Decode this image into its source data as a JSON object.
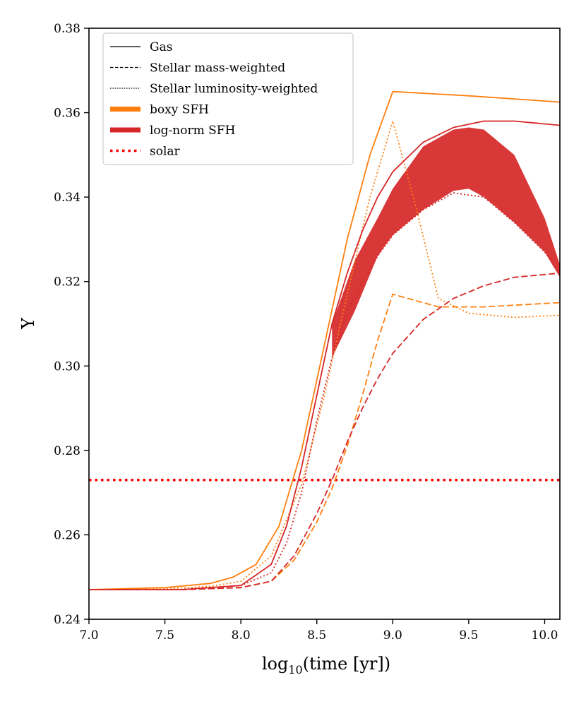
{
  "chart_data": {
    "type": "line",
    "xlabel": "log",
    "xlabel_sub": "10",
    "xlabel_rest": "(time [yr])",
    "ylabel": "Y",
    "xlim": [
      7.0,
      10.1
    ],
    "ylim": [
      0.24,
      0.38
    ],
    "xticks": [
      7.0,
      7.5,
      8.0,
      8.5,
      9.0,
      9.5,
      10.0
    ],
    "xtick_labels": [
      "7.0",
      "7.5",
      "8.0",
      "8.5",
      "9.0",
      "9.5",
      "10.0"
    ],
    "yticks": [
      0.24,
      0.26,
      0.28,
      0.3,
      0.32,
      0.34,
      0.36,
      0.38
    ],
    "ytick_labels": [
      "0.24",
      "0.26",
      "0.28",
      "0.30",
      "0.32",
      "0.34",
      "0.36",
      "0.38"
    ],
    "grid": false,
    "legend_position": "top-left",
    "colors": {
      "boxy": "#ff7f0e",
      "lognorm": "#d62728",
      "solar": "#ff0000"
    },
    "legend": [
      {
        "label": "Gas",
        "style": "solid",
        "color": "#000000"
      },
      {
        "label": "Stellar mass-weighted",
        "style": "dashed",
        "color": "#000000"
      },
      {
        "label": "Stellar luminosity-weighted",
        "style": "dotted",
        "color": "#000000"
      },
      {
        "label": "boxy SFH",
        "style": "thick",
        "color": "#ff7f0e"
      },
      {
        "label": "log-norm SFH",
        "style": "thick",
        "color": "#d62728"
      },
      {
        "label": "solar",
        "style": "dotted-thick",
        "color": "#ff0000"
      }
    ],
    "solar_y": 0.273,
    "series": [
      {
        "sfh": "boxy",
        "kind": "gas",
        "x": [
          7.0,
          7.5,
          7.8,
          7.95,
          8.1,
          8.25,
          8.4,
          8.55,
          8.7,
          8.85,
          9.0,
          9.5,
          10.1
        ],
        "y": [
          0.247,
          0.2475,
          0.2485,
          0.25,
          0.253,
          0.262,
          0.28,
          0.305,
          0.33,
          0.35,
          0.365,
          0.364,
          0.3625
        ]
      },
      {
        "sfh": "boxy",
        "kind": "mass",
        "x": [
          7.0,
          7.6,
          8.0,
          8.2,
          8.35,
          8.5,
          8.6,
          8.7,
          8.8,
          8.9,
          9.0,
          9.3,
          9.6,
          10.1
        ],
        "y": [
          0.247,
          0.247,
          0.2475,
          0.249,
          0.254,
          0.263,
          0.271,
          0.281,
          0.293,
          0.306,
          0.317,
          0.314,
          0.314,
          0.315
        ]
      },
      {
        "sfh": "boxy",
        "kind": "lum",
        "x": [
          7.0,
          7.5,
          7.8,
          8.0,
          8.2,
          8.4,
          8.55,
          8.7,
          8.85,
          9.0,
          9.15,
          9.3,
          9.5,
          9.8,
          10.1
        ],
        "y": [
          0.247,
          0.2472,
          0.2478,
          0.249,
          0.255,
          0.272,
          0.293,
          0.317,
          0.34,
          0.358,
          0.338,
          0.316,
          0.3125,
          0.3115,
          0.312
        ]
      },
      {
        "sfh": "lognorm",
        "kind": "gas",
        "x": [
          7.0,
          7.6,
          8.0,
          8.2,
          8.3,
          8.4,
          8.5,
          8.6,
          8.7,
          8.8,
          8.9,
          9.0,
          9.2,
          9.4,
          9.6,
          9.8,
          10.1
        ],
        "y": [
          0.247,
          0.247,
          0.248,
          0.253,
          0.262,
          0.276,
          0.293,
          0.31,
          0.322,
          0.332,
          0.34,
          0.346,
          0.353,
          0.3565,
          0.358,
          0.358,
          0.357
        ]
      },
      {
        "sfh": "lognorm",
        "kind": "mass",
        "x": [
          7.0,
          7.6,
          8.0,
          8.2,
          8.35,
          8.5,
          8.6,
          8.7,
          8.8,
          8.9,
          9.0,
          9.2,
          9.4,
          9.6,
          9.8,
          10.1
        ],
        "y": [
          0.247,
          0.247,
          0.2475,
          0.249,
          0.255,
          0.265,
          0.273,
          0.282,
          0.29,
          0.297,
          0.303,
          0.311,
          0.316,
          0.319,
          0.321,
          0.322
        ]
      },
      {
        "sfh": "lognorm",
        "kind": "lum",
        "x": [
          7.0,
          7.6,
          8.0,
          8.2,
          8.3,
          8.4,
          8.5,
          8.6,
          8.7,
          8.8,
          8.9,
          9.0,
          9.2,
          9.4,
          9.6,
          9.8,
          10.0,
          10.1
        ],
        "y": [
          0.247,
          0.247,
          0.248,
          0.251,
          0.258,
          0.27,
          0.287,
          0.302,
          0.313,
          0.32,
          0.326,
          0.331,
          0.337,
          0.341,
          0.34,
          0.334,
          0.327,
          0.322
        ]
      }
    ],
    "oscillation_band": {
      "x": [
        8.6,
        8.75,
        8.9,
        9.0,
        9.2,
        9.4,
        9.5,
        9.6,
        9.8,
        10.0,
        10.1
      ],
      "y_upper": [
        0.31,
        0.325,
        0.335,
        0.342,
        0.352,
        0.356,
        0.3565,
        0.356,
        0.35,
        0.335,
        0.324
      ],
      "y_lower": [
        0.302,
        0.313,
        0.326,
        0.331,
        0.337,
        0.3415,
        0.342,
        0.34,
        0.334,
        0.327,
        0.321
      ]
    }
  }
}
